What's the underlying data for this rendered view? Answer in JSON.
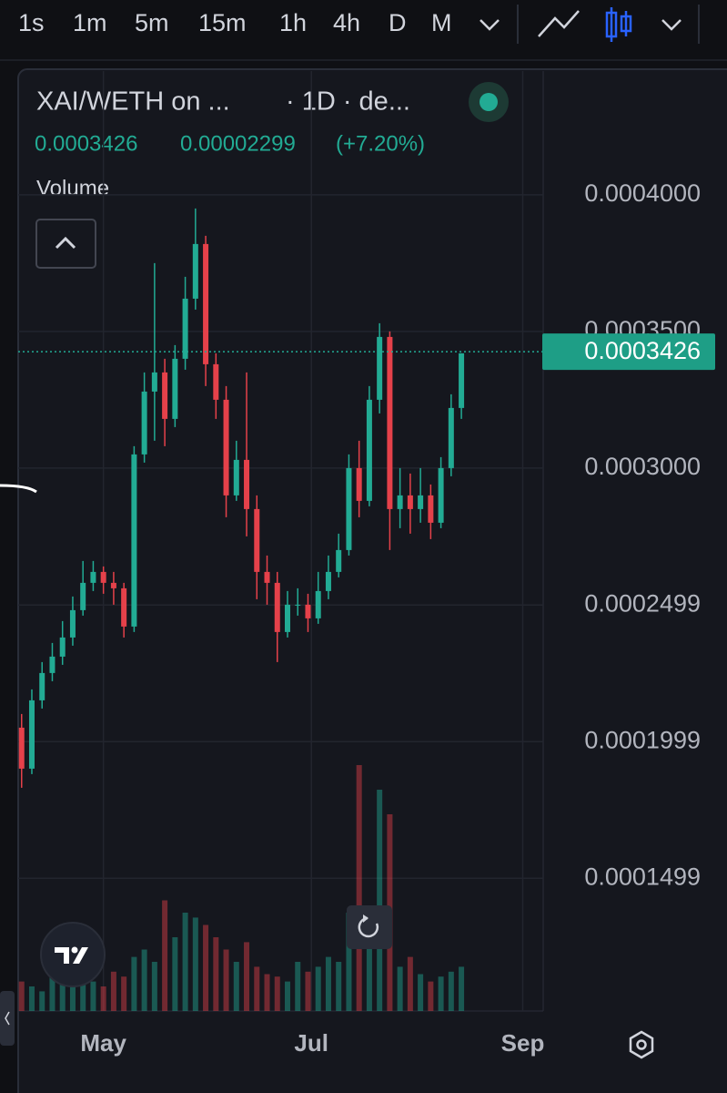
{
  "toolbar": {
    "intervals": [
      "1s",
      "1m",
      "5m",
      "15m",
      "1h",
      "4h",
      "D",
      "M"
    ]
  },
  "chart_data": {
    "type": "candlestick",
    "title": "XAI/WETH on ...",
    "subtitle": "· 1D · de...",
    "last_price": 0.0003426,
    "change": "0.00002299",
    "change_pct": "(+7.20%)",
    "volume_label": "Volume",
    "up_color": "#22ab94",
    "down_color": "#e5414a",
    "x": [
      1,
      4,
      7,
      10,
      13,
      16,
      19,
      22,
      25,
      28,
      31,
      34,
      37,
      40,
      43,
      46,
      49,
      52,
      55,
      58,
      61,
      64,
      67,
      70,
      73,
      76,
      79,
      82,
      85,
      88,
      91,
      94,
      97,
      100,
      103,
      106,
      109,
      112,
      115,
      118,
      121,
      124,
      127,
      130
    ],
    "open": [
      0.000205,
      0.00019,
      0.000215,
      0.000225,
      0.000231,
      0.000238,
      0.000248,
      0.000258,
      0.000262,
      0.000258,
      0.000256,
      0.000242,
      0.000305,
      0.000328,
      0.000335,
      0.000318,
      0.00034,
      0.000362,
      0.000382,
      0.000338,
      0.000325,
      0.00029,
      0.000303,
      0.000285,
      0.000262,
      0.000258,
      0.00024,
      0.00025,
      0.00025,
      0.000245,
      0.000255,
      0.000262,
      0.00027,
      0.0003,
      0.000288,
      0.000325,
      0.000348,
      0.000285,
      0.00029,
      0.000285,
      0.00029,
      0.00028,
      0.0003,
      0.000322
    ],
    "high": [
      0.00021,
      0.000219,
      0.000229,
      0.000236,
      0.000244,
      0.000253,
      0.000266,
      0.000266,
      0.000264,
      0.000262,
      0.000258,
      0.000308,
      0.000335,
      0.000375,
      0.00034,
      0.000345,
      0.00037,
      0.000395,
      0.000385,
      0.000342,
      0.00033,
      0.00031,
      0.000335,
      0.00029,
      0.000268,
      0.000262,
      0.000255,
      0.000256,
      0.000254,
      0.000262,
      0.000268,
      0.000276,
      0.000305,
      0.00031,
      0.00033,
      0.000353,
      0.00035,
      0.0003,
      0.000298,
      0.0003,
      0.000294,
      0.000304,
      0.000327,
      0.000342
    ],
    "low": [
      0.000183,
      0.000188,
      0.000212,
      0.000222,
      0.000228,
      0.000235,
      0.000246,
      0.000255,
      0.000254,
      0.00025,
      0.000238,
      0.00024,
      0.000302,
      0.00031,
      0.000308,
      0.000315,
      0.000336,
      0.000358,
      0.00033,
      0.000318,
      0.000282,
      0.000288,
      0.000275,
      0.000252,
      0.00025,
      0.000229,
      0.000238,
      0.000246,
      0.00024,
      0.000243,
      0.000252,
      0.00026,
      0.000268,
      0.000282,
      0.000286,
      0.00032,
      0.00027,
      0.000278,
      0.000276,
      0.00028,
      0.000274,
      0.000278,
      0.000297,
      0.000318
    ],
    "close": [
      0.00019,
      0.000215,
      0.000225,
      0.000231,
      0.000238,
      0.000248,
      0.000258,
      0.000262,
      0.000258,
      0.000256,
      0.000242,
      0.000305,
      0.000328,
      0.000335,
      0.000318,
      0.00034,
      0.000362,
      0.000382,
      0.000338,
      0.000325,
      0.00029,
      0.000303,
      0.000285,
      0.000262,
      0.000258,
      0.00024,
      0.00025,
      0.00025,
      0.000245,
      0.000255,
      0.000262,
      0.00027,
      0.0003,
      0.000288,
      0.000325,
      0.000348,
      0.000285,
      0.00029,
      0.000285,
      0.00029,
      0.00028,
      0.0003,
      0.000322,
      0.000342
    ],
    "volume": [
      12,
      10,
      8,
      15,
      14,
      18,
      20,
      12,
      10,
      16,
      14,
      22,
      25,
      20,
      45,
      30,
      40,
      38,
      35,
      30,
      25,
      20,
      28,
      18,
      15,
      14,
      12,
      20,
      16,
      18,
      22,
      20,
      40,
      100,
      30,
      90,
      80,
      18,
      22,
      15,
      12,
      14,
      16,
      18
    ],
    "vlim": [
      0,
      100
    ],
    "xlim": [
      0,
      154
    ],
    "xticks": [
      {
        "value": 25,
        "label": "May"
      },
      {
        "value": 86,
        "label": "Jul"
      },
      {
        "value": 148,
        "label": "Sep"
      }
    ],
    "ylim": [
      0.0001013,
      0.0004453
    ],
    "yticks": [
      0.0001499,
      0.0001999,
      0.0002499,
      {
        "value": 0.0003,
        "label": "0.0003000"
      },
      {
        "value": 0.00035,
        "label": "0.0003500"
      },
      {
        "value": 0.0004,
        "label": "0.0004000"
      }
    ],
    "grid": true
  }
}
